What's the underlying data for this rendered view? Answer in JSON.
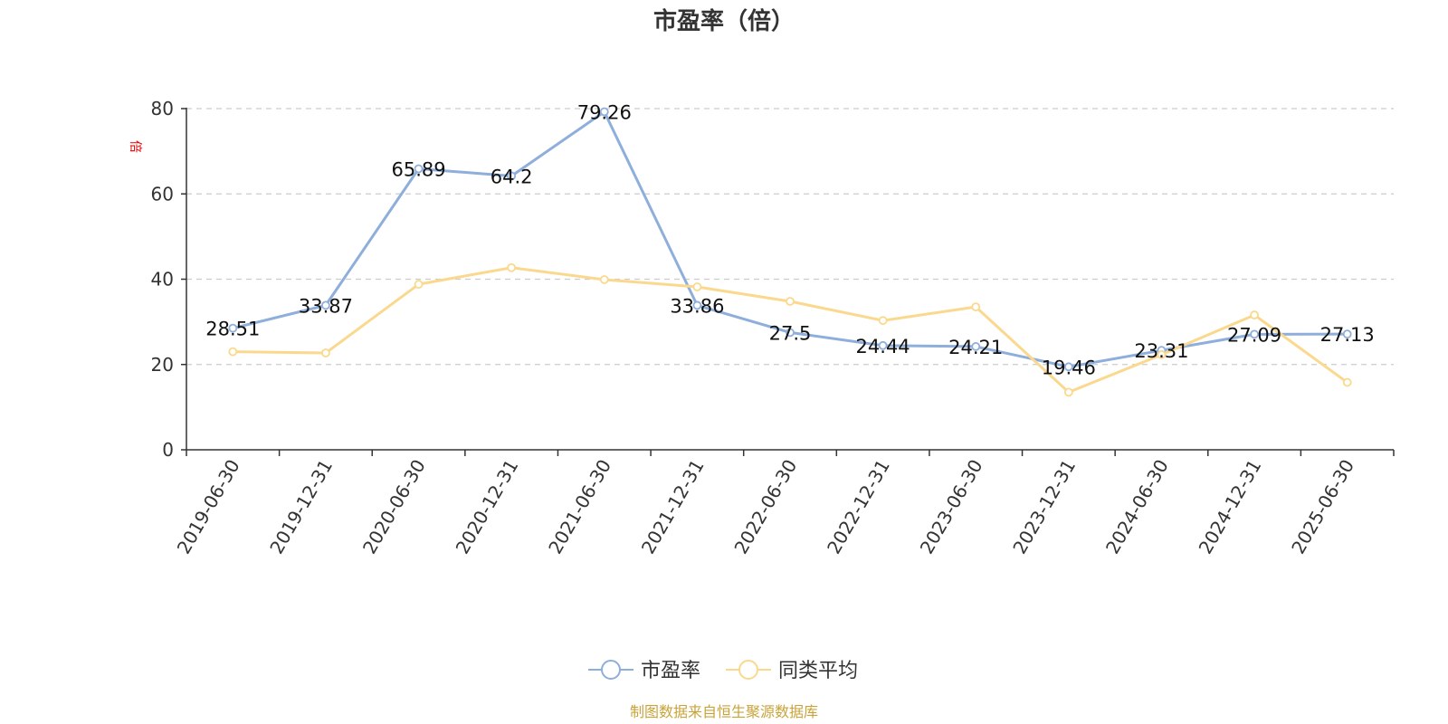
{
  "chart_data": {
    "type": "line",
    "title": "市盈率（倍）",
    "unit_label": "倍",
    "source_note": "制图数据来自恒生聚源数据库",
    "categories": [
      "2019-06-30",
      "2019-12-31",
      "2020-06-30",
      "2020-12-31",
      "2021-06-30",
      "2021-12-31",
      "2022-06-30",
      "2022-12-31",
      "2023-06-30",
      "2023-12-31",
      "2024-06-30",
      "2024-12-31",
      "2025-06-30"
    ],
    "ylim": [
      0,
      80
    ],
    "yticks": [
      "0",
      "20",
      "40",
      "60",
      "80"
    ],
    "grid": true,
    "legend_position": "bottom-center",
    "series": [
      {
        "name": "市盈率",
        "color": "#8eaedb",
        "values": [
          28.51,
          33.87,
          65.89,
          64.2,
          79.26,
          33.86,
          27.5,
          24.44,
          24.21,
          19.46,
          23.31,
          27.09,
          27.13
        ],
        "labels": [
          "28.51",
          "33.87",
          "65.89",
          "64.2",
          "79.26",
          "33.86",
          "27.5",
          "24.44",
          "24.21",
          "19.46",
          "23.31",
          "27.09",
          "27.13"
        ]
      },
      {
        "name": "同类平均",
        "color": "#fad98e",
        "values": [
          23.0,
          22.7,
          38.8,
          42.7,
          39.9,
          38.2,
          34.8,
          30.3,
          33.5,
          13.5,
          22.3,
          31.6,
          15.8
        ]
      }
    ]
  }
}
